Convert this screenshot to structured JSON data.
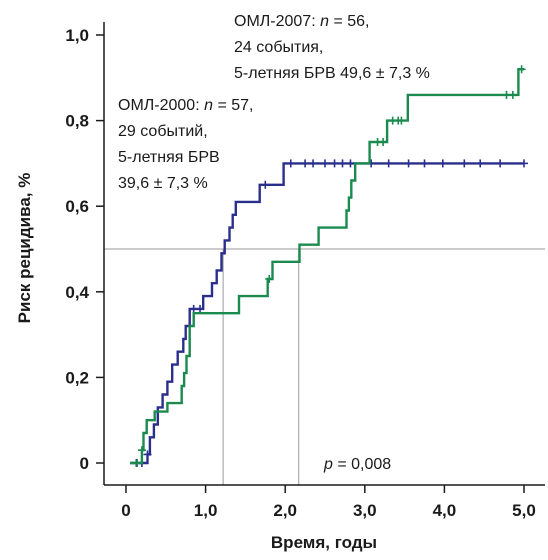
{
  "chart_data": {
    "type": "line",
    "xlabel": "Время, годы",
    "ylabel": "Риск рецидива, %",
    "xlim": [
      0,
      5.0
    ],
    "ylim": [
      0,
      1.0
    ],
    "x_ticks": [
      "0",
      "1,0",
      "2,0",
      "3,0",
      "4,0",
      "5,0"
    ],
    "y_ticks": [
      "0",
      "0,2",
      "0,4",
      "0,6",
      "0,8",
      "1,0"
    ],
    "grid": false,
    "reference_lines": {
      "horizontal_y": 0.5,
      "vertical_x": [
        1.22,
        2.17
      ]
    },
    "series": [
      {
        "color": "#2b2f8c",
        "points": [
          [
            0.05,
            0.0
          ],
          [
            0.27,
            0.0
          ],
          [
            0.27,
            0.02
          ],
          [
            0.3,
            0.02
          ],
          [
            0.3,
            0.06
          ],
          [
            0.35,
            0.06
          ],
          [
            0.35,
            0.09
          ],
          [
            0.4,
            0.09
          ],
          [
            0.4,
            0.13
          ],
          [
            0.46,
            0.13
          ],
          [
            0.46,
            0.16
          ],
          [
            0.52,
            0.16
          ],
          [
            0.52,
            0.19
          ],
          [
            0.58,
            0.19
          ],
          [
            0.58,
            0.23
          ],
          [
            0.65,
            0.23
          ],
          [
            0.65,
            0.26
          ],
          [
            0.72,
            0.26
          ],
          [
            0.72,
            0.29
          ],
          [
            0.75,
            0.29
          ],
          [
            0.75,
            0.32
          ],
          [
            0.8,
            0.32
          ],
          [
            0.8,
            0.36
          ],
          [
            0.97,
            0.36
          ],
          [
            0.97,
            0.39
          ],
          [
            1.08,
            0.39
          ],
          [
            1.08,
            0.42
          ],
          [
            1.14,
            0.42
          ],
          [
            1.14,
            0.45
          ],
          [
            1.2,
            0.45
          ],
          [
            1.2,
            0.49
          ],
          [
            1.24,
            0.49
          ],
          [
            1.24,
            0.52
          ],
          [
            1.3,
            0.52
          ],
          [
            1.3,
            0.55
          ],
          [
            1.34,
            0.55
          ],
          [
            1.34,
            0.58
          ],
          [
            1.38,
            0.58
          ],
          [
            1.38,
            0.61
          ],
          [
            1.68,
            0.61
          ],
          [
            1.68,
            0.65
          ],
          [
            1.98,
            0.65
          ],
          [
            1.98,
            0.7
          ],
          [
            5.0,
            0.7
          ]
        ],
        "censored_x": [
          0.13,
          0.2,
          0.27,
          0.85,
          0.93,
          1.75,
          2.07,
          2.25,
          2.35,
          2.5,
          2.62,
          2.72,
          2.82,
          3.08,
          3.3,
          3.55,
          3.75,
          3.98,
          4.25,
          4.45,
          4.7,
          5.0
        ]
      },
      {
        "color": "#1b8a4e",
        "points": [
          [
            0.05,
            0.0
          ],
          [
            0.2,
            0.0
          ],
          [
            0.2,
            0.03
          ],
          [
            0.22,
            0.03
          ],
          [
            0.22,
            0.07
          ],
          [
            0.26,
            0.07
          ],
          [
            0.26,
            0.1
          ],
          [
            0.36,
            0.1
          ],
          [
            0.36,
            0.12
          ],
          [
            0.52,
            0.12
          ],
          [
            0.52,
            0.14
          ],
          [
            0.7,
            0.14
          ],
          [
            0.7,
            0.18
          ],
          [
            0.73,
            0.18
          ],
          [
            0.73,
            0.21
          ],
          [
            0.76,
            0.21
          ],
          [
            0.76,
            0.25
          ],
          [
            0.8,
            0.25
          ],
          [
            0.8,
            0.32
          ],
          [
            0.85,
            0.32
          ],
          [
            0.85,
            0.35
          ],
          [
            1.42,
            0.35
          ],
          [
            1.42,
            0.39
          ],
          [
            1.78,
            0.39
          ],
          [
            1.78,
            0.43
          ],
          [
            1.84,
            0.43
          ],
          [
            1.84,
            0.47
          ],
          [
            2.18,
            0.47
          ],
          [
            2.18,
            0.51
          ],
          [
            2.42,
            0.51
          ],
          [
            2.42,
            0.55
          ],
          [
            2.77,
            0.55
          ],
          [
            2.77,
            0.59
          ],
          [
            2.8,
            0.59
          ],
          [
            2.8,
            0.62
          ],
          [
            2.83,
            0.62
          ],
          [
            2.83,
            0.66
          ],
          [
            2.88,
            0.66
          ],
          [
            2.88,
            0.7
          ],
          [
            3.06,
            0.7
          ],
          [
            3.06,
            0.75
          ],
          [
            3.28,
            0.75
          ],
          [
            3.28,
            0.8
          ],
          [
            3.54,
            0.8
          ],
          [
            3.54,
            0.86
          ],
          [
            4.93,
            0.86
          ],
          [
            4.93,
            0.92
          ],
          [
            5.0,
            0.92
          ]
        ],
        "censored_x": [
          0.14,
          0.2,
          1.8,
          3.16,
          3.23,
          3.35,
          3.42,
          3.46,
          4.78,
          4.86,
          4.97
        ]
      }
    ],
    "annotations": {
      "oml2007": [
        "ОМЛ-2007: n = 56,",
        "24 события,",
        "5-летняя БРВ 49,6 ± 7,3 %"
      ],
      "oml2000": [
        "ОМЛ-2000: n = 57,",
        "29 событий,",
        "5-летняя БРВ",
        "39,6 ± 7,3 %"
      ],
      "pvalue": "p = 0,008"
    }
  }
}
